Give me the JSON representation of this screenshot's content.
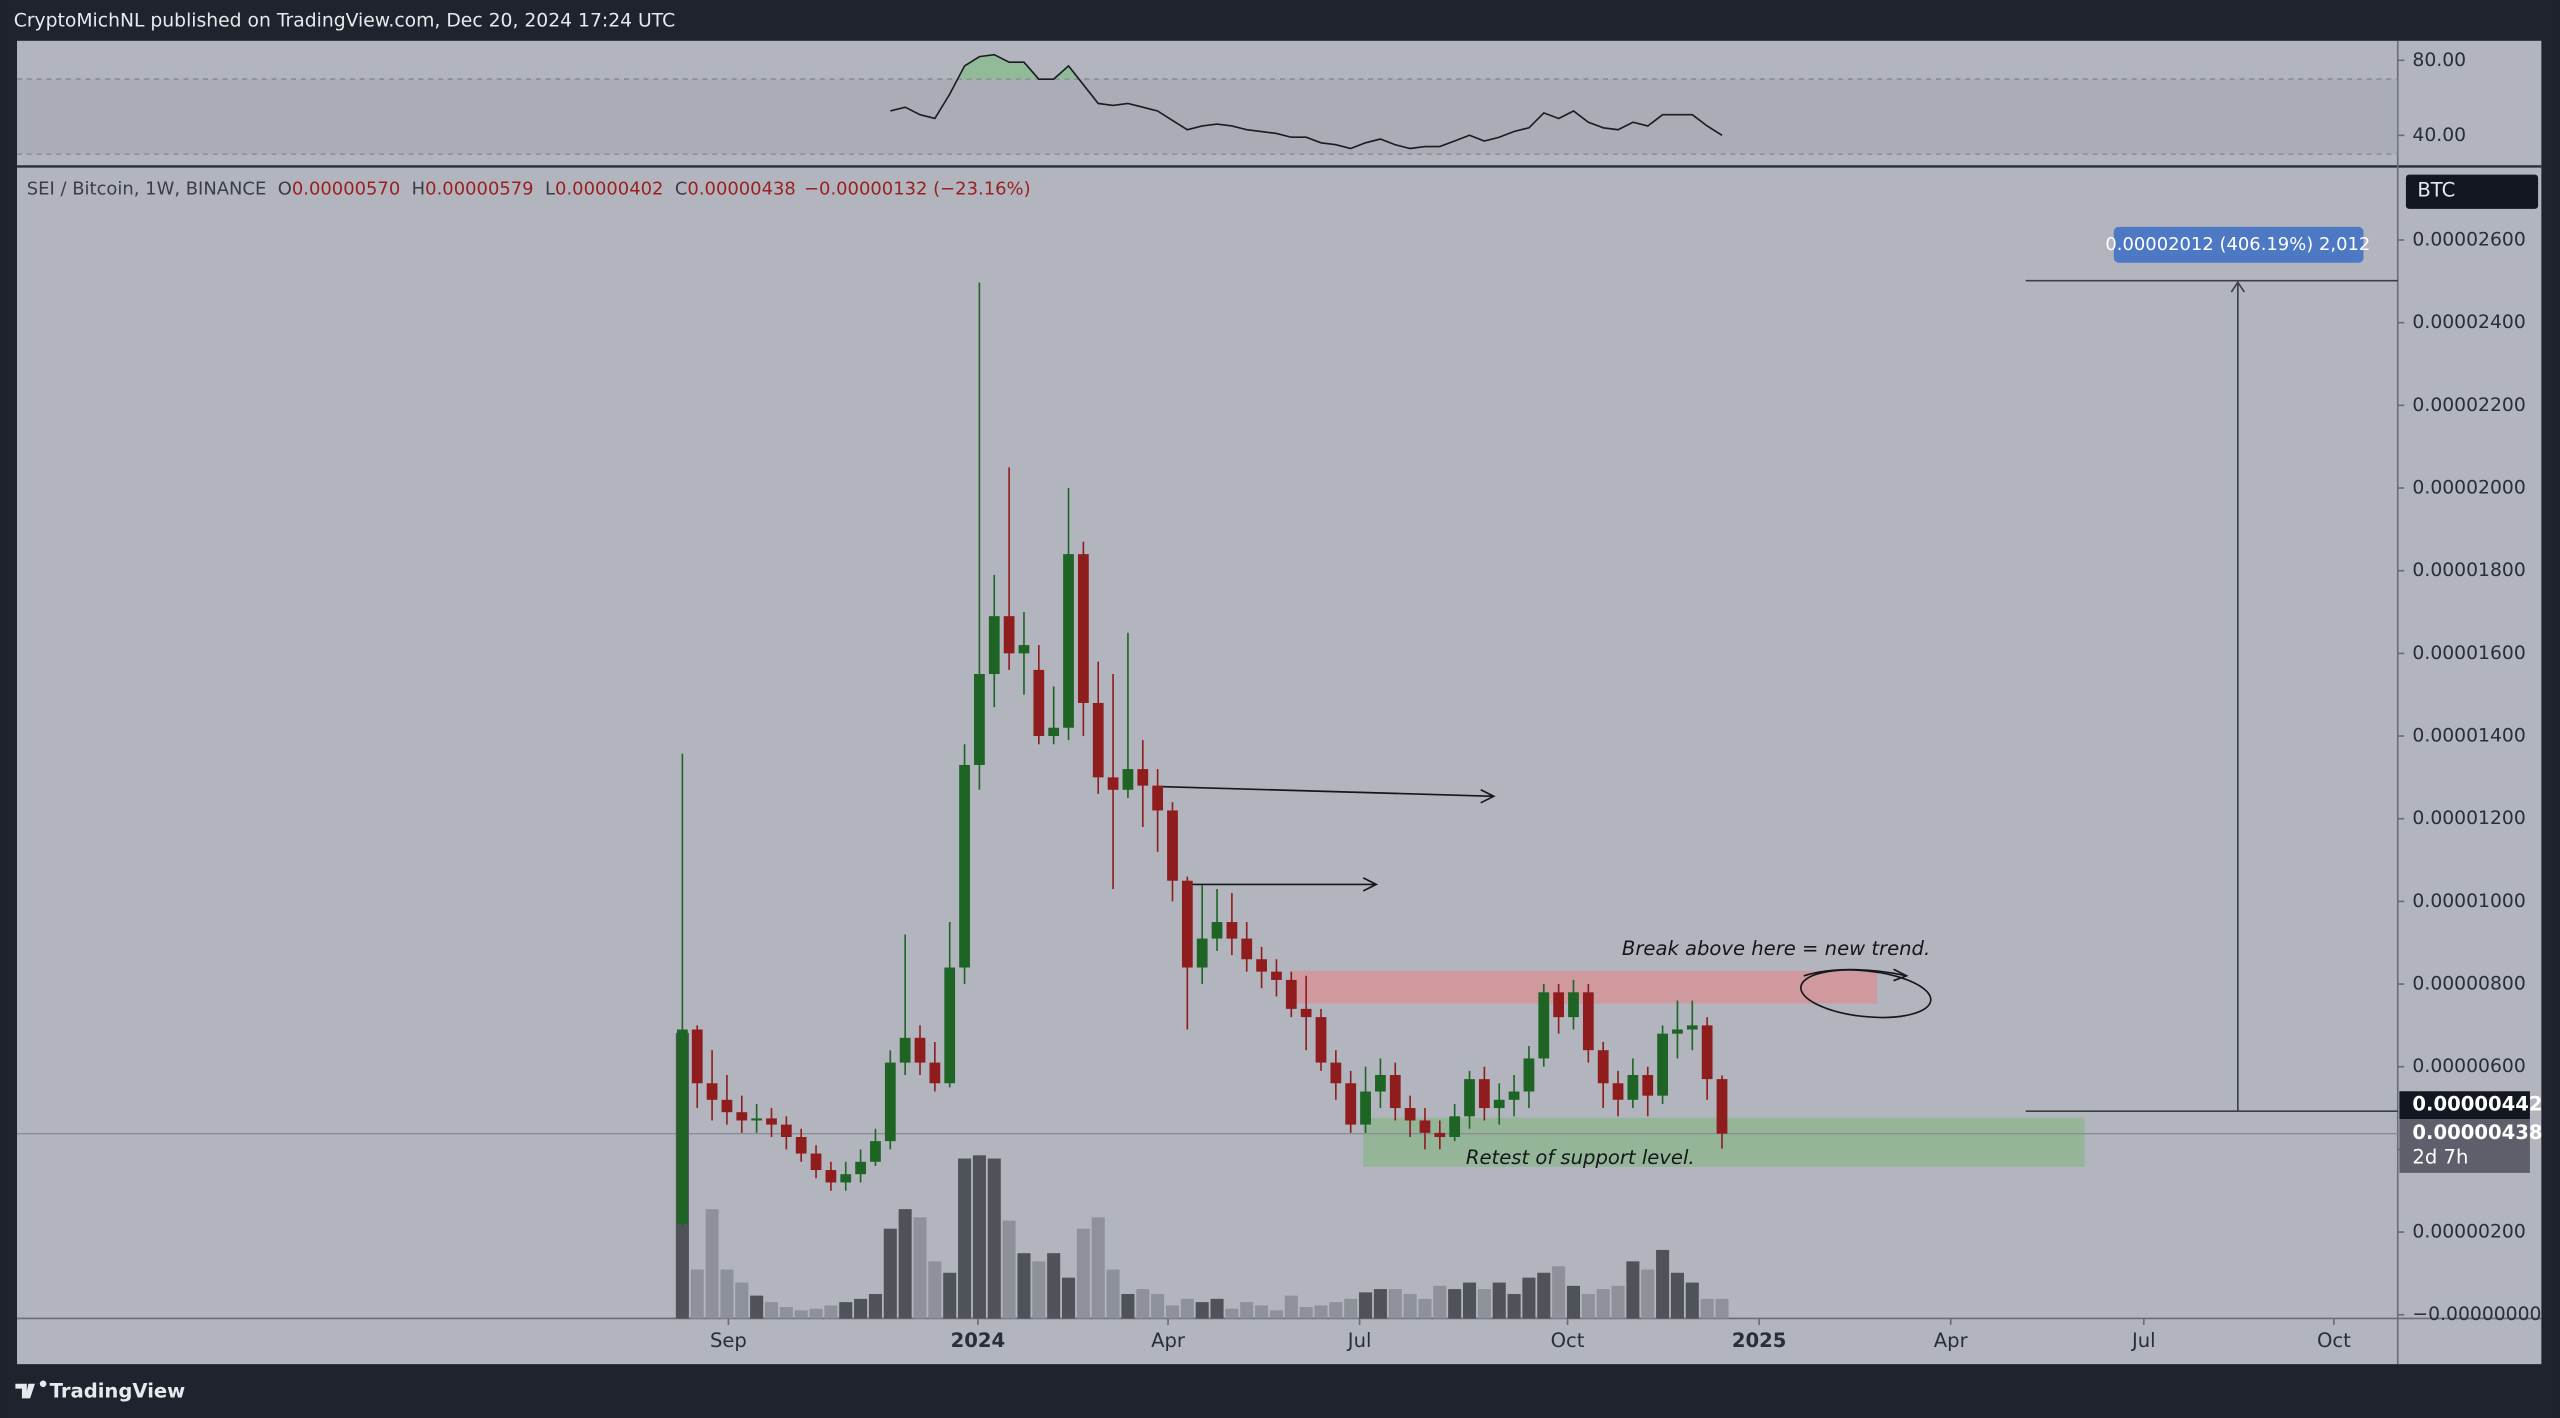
{
  "header": "CryptoMichNL published on TradingView.com, Dec 20, 2024 17:24 UTC",
  "footer": "TradingView",
  "chart_data": [
    {
      "type": "candlestick",
      "title": "SEI / Bitcoin, 1W, BINANCE",
      "legend": [
        {
          "key": "O",
          "value": "0.00000570"
        },
        {
          "key": "H",
          "value": "0.00000579"
        },
        {
          "key": "L",
          "value": "0.00000402"
        },
        {
          "key": "C",
          "value": "0.00000438"
        }
      ],
      "change": "−0.00000132 (−23.16%)",
      "currency": "BTC",
      "up_color": "#1d6425",
      "down_color": "#8f1d1d",
      "volume_up_color": "#4f5259",
      "volume_down_color": "#8e9199",
      "open": [
        2.2e-06,
        6.9e-06,
        5.6e-06,
        5.2e-06,
        4.9e-06,
        4.7e-06,
        4.75e-06,
        4.6e-06,
        4.3e-06,
        3.9e-06,
        3.5e-06,
        3.2e-06,
        3.4e-06,
        3.7e-06,
        4.2e-06,
        6.1e-06,
        6.7e-06,
        6.1e-06,
        5.6e-06,
        8.4e-06,
        1.33e-05,
        1.55e-05,
        1.69e-05,
        1.6e-05,
        1.56e-05,
        1.4e-05,
        1.42e-05,
        1.84e-05,
        1.48e-05,
        1.3e-05,
        1.27e-05,
        1.32e-05,
        1.28e-05,
        1.22e-05,
        1.05e-05,
        8.4e-06,
        9.1e-06,
        9.5e-06,
        9.1e-06,
        8.6e-06,
        8.3e-06,
        8.1e-06,
        7.4e-06,
        7.2e-06,
        6.1e-06,
        5.6e-06,
        4.6e-06,
        5.4e-06,
        5.8e-06,
        5e-06,
        4.7e-06,
        4.4e-06,
        4.3e-06,
        4.8e-06,
        5.7e-06,
        5e-06,
        5.2e-06,
        5.4e-06,
        6.2e-06,
        7.8e-06,
        7.2e-06,
        7.8e-06,
        6.4e-06,
        5.6e-06,
        5.2e-06,
        5.8e-06,
        5.3e-06,
        6.8e-06,
        6.9e-06,
        7e-06,
        5.7e-06
      ],
      "high": [
        1.357e-05,
        7e-06,
        6.4e-06,
        5.8e-06,
        5.3e-06,
        5.1e-06,
        5e-06,
        4.8e-06,
        4.5e-06,
        4.1e-06,
        3.7e-06,
        3.7e-06,
        4e-06,
        4.5e-06,
        6.4e-06,
        9.2e-06,
        7e-06,
        6.6e-06,
        9.5e-06,
        1.38e-05,
        2.497e-05,
        1.79e-05,
        2.05e-05,
        1.7e-05,
        1.62e-05,
        1.52e-05,
        2e-05,
        1.87e-05,
        1.58e-05,
        1.55e-05,
        1.65e-05,
        1.39e-05,
        1.32e-05,
        1.24e-05,
        1.06e-05,
        1.04e-05,
        1.03e-05,
        1.02e-05,
        9.5e-06,
        8.9e-06,
        8.6e-06,
        8.3e-06,
        8.2e-06,
        7.4e-06,
        6.4e-06,
        5.9e-06,
        6e-06,
        6.2e-06,
        6.1e-06,
        5.3e-06,
        5e-06,
        4.7e-06,
        5.1e-06,
        5.9e-06,
        6e-06,
        5.6e-06,
        5.8e-06,
        6.5e-06,
        8e-06,
        8e-06,
        8.1e-06,
        8e-06,
        6.6e-06,
        5.9e-06,
        6.2e-06,
        6e-06,
        7e-06,
        7.6e-06,
        7.6e-06,
        7.2e-06,
        5.79e-06
      ],
      "low": [
        2.1e-06,
        5e-06,
        4.7e-06,
        4.6e-06,
        4.4e-06,
        4.4e-06,
        4.3e-06,
        4e-06,
        3.7e-06,
        3.3e-06,
        3e-06,
        3e-06,
        3.2e-06,
        3.6e-06,
        4e-06,
        5.8e-06,
        5.8e-06,
        5.4e-06,
        5.5e-06,
        8e-06,
        1.27e-05,
        1.47e-05,
        1.56e-05,
        1.5e-05,
        1.38e-05,
        1.38e-05,
        1.39e-05,
        1.4e-05,
        1.26e-05,
        1.03e-05,
        1.25e-05,
        1.18e-05,
        1.12e-05,
        1e-05,
        6.9e-06,
        8e-06,
        8.8e-06,
        8.7e-06,
        8.3e-06,
        7.9e-06,
        7.7e-06,
        7.2e-06,
        6.4e-06,
        5.9e-06,
        5.2e-06,
        4.4e-06,
        4.4e-06,
        5e-06,
        4.7e-06,
        4.3e-06,
        4e-06,
        4e-06,
        4.2e-06,
        4.5e-06,
        4.7e-06,
        4.6e-06,
        4.8e-06,
        5e-06,
        6e-06,
        6.8e-06,
        6.9e-06,
        6.1e-06,
        5e-06,
        4.8e-06,
        5e-06,
        4.8e-06,
        5.1e-06,
        6.2e-06,
        6.4e-06,
        5.2e-06,
        4.02e-06
      ],
      "close": [
        6.9e-06,
        5.6e-06,
        5.2e-06,
        4.9e-06,
        4.7e-06,
        4.75e-06,
        4.6e-06,
        4.3e-06,
        3.9e-06,
        3.5e-06,
        3.2e-06,
        3.4e-06,
        3.7e-06,
        4.2e-06,
        6.1e-06,
        6.7e-06,
        6.1e-06,
        5.6e-06,
        8.4e-06,
        1.33e-05,
        1.55e-05,
        1.69e-05,
        1.6e-05,
        1.62e-05,
        1.4e-05,
        1.42e-05,
        1.84e-05,
        1.48e-05,
        1.3e-05,
        1.27e-05,
        1.32e-05,
        1.28e-05,
        1.22e-05,
        1.05e-05,
        8.4e-06,
        9.1e-06,
        9.5e-06,
        9.1e-06,
        8.6e-06,
        8.3e-06,
        8.1e-06,
        7.4e-06,
        7.2e-06,
        6.1e-06,
        5.6e-06,
        4.6e-06,
        5.4e-06,
        5.8e-06,
        5e-06,
        4.7e-06,
        4.4e-06,
        4.3e-06,
        4.8e-06,
        5.7e-06,
        5e-06,
        5.2e-06,
        5.4e-06,
        6.2e-06,
        7.8e-06,
        7.2e-06,
        7.8e-06,
        6.4e-06,
        5.6e-06,
        5.2e-06,
        5.8e-06,
        5.3e-06,
        6.8e-06,
        6.9e-06,
        7e-06,
        5.7e-06,
        4.38e-06
      ],
      "volume": [
        175,
        30,
        67,
        30,
        22,
        14,
        10,
        7,
        5,
        6,
        8,
        10,
        12,
        15,
        55,
        67,
        62,
        35,
        28,
        98,
        100,
        98,
        60,
        40,
        35,
        40,
        25,
        55,
        62,
        30,
        15,
        18,
        15,
        8,
        12,
        10,
        12,
        6,
        10,
        8,
        5,
        14,
        7,
        8,
        10,
        12,
        16,
        18,
        18,
        15,
        12,
        20,
        18,
        22,
        18,
        22,
        15,
        25,
        28,
        32,
        20,
        15,
        18,
        20,
        35,
        30,
        42,
        28,
        22,
        12,
        12
      ],
      "volume_ylim": [
        0,
        705
      ],
      "xlim": [
        -44.8,
        115.5
      ],
      "xticks": [
        {
          "value": 3.1,
          "label": "Sep"
        },
        {
          "value": 19.9,
          "label": "2024"
        },
        {
          "value": 32.7,
          "label": "Apr"
        },
        {
          "value": 45.6,
          "label": "Jul"
        },
        {
          "value": 59.6,
          "label": "Oct"
        },
        {
          "value": 72.5,
          "label": "2025"
        },
        {
          "value": 85.4,
          "label": "Apr"
        },
        {
          "value": 98.4,
          "label": "Jul"
        },
        {
          "value": 111.2,
          "label": "Oct"
        }
      ],
      "ylim": [
        -9e-08,
        2.774e-05
      ],
      "yticks": [
        {
          "value": 0,
          "label": "−0.00000000"
        },
        {
          "value": 2e-06,
          "label": "0.00000200"
        },
        {
          "value": 4e-06,
          "label": "0.00000400"
        },
        {
          "value": 6e-06,
          "label": "0.00000600"
        },
        {
          "value": 8e-06,
          "label": "0.00000800"
        },
        {
          "value": 1e-05,
          "label": "0.00001000"
        },
        {
          "value": 1.2e-05,
          "label": "0.00001200"
        },
        {
          "value": 1.4e-05,
          "label": "0.00001400"
        },
        {
          "value": 1.6e-05,
          "label": "0.00001600"
        },
        {
          "value": 1.8e-05,
          "label": "0.00001800"
        },
        {
          "value": 2e-05,
          "label": "0.00002000"
        },
        {
          "value": 2.2e-05,
          "label": "0.00002200"
        },
        {
          "value": 2.4e-05,
          "label": "0.00002400"
        },
        {
          "value": 2.6e-05,
          "label": "0.00002600"
        }
      ],
      "price_labels": [
        {
          "value": 4.42e-06,
          "label": "0.00000442"
        },
        {
          "value": 4.38e-06,
          "label": "0.00000438"
        }
      ],
      "countdown": "2d 7h",
      "measure_label": "0.00002012 (406.19%) 2,012",
      "annotations": [
        "Break above here = new trend.",
        "Retest of support level."
      ]
    },
    {
      "type": "line",
      "color": "#1a1c22",
      "values": [
        null,
        null,
        null,
        null,
        null,
        null,
        null,
        null,
        null,
        null,
        null,
        null,
        null,
        null,
        53,
        55,
        51,
        49,
        62,
        77,
        82,
        83,
        79,
        79,
        70,
        70,
        77,
        67,
        57,
        56,
        57,
        55,
        53,
        48,
        43,
        45,
        46,
        45,
        43,
        42,
        41,
        39,
        39,
        36,
        35,
        33,
        36,
        38,
        35,
        33,
        34,
        34,
        37,
        40,
        37,
        39,
        42,
        44,
        52,
        49,
        53,
        47,
        44,
        43,
        47,
        45,
        51,
        51,
        51,
        45,
        40
      ],
      "bands": [
        30,
        70
      ],
      "ylim": [
        24.3,
        90.4
      ],
      "yticks": [
        {
          "value": 80,
          "label": "80.00"
        },
        {
          "value": 40,
          "label": "40.00"
        }
      ]
    }
  ]
}
